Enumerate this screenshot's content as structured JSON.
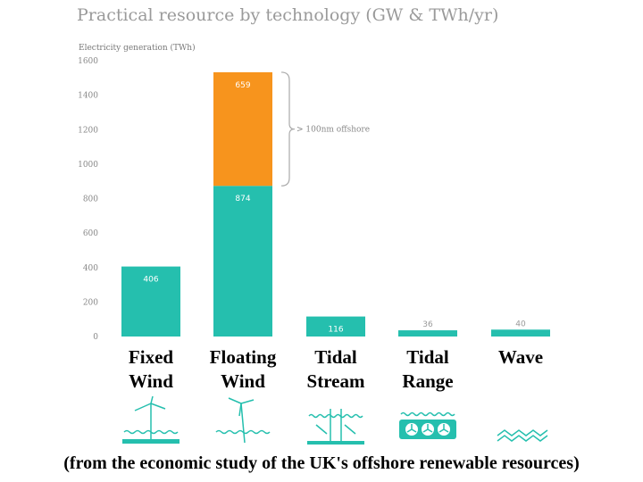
{
  "chart_data": {
    "type": "bar",
    "stacked": true,
    "title": "Practical resource by technology (GW & TWh/yr)",
    "ylabel": "Electricity generation (TWh)",
    "ylim": [
      0,
      1600
    ],
    "yticks": [
      "0",
      "200",
      "400",
      "600",
      "800",
      "1000",
      "1200",
      "1400",
      "1600"
    ],
    "categories": [
      [
        "Fixed",
        "Wind"
      ],
      [
        "Floating",
        "Wind"
      ],
      [
        "Tidal",
        "Stream"
      ],
      [
        "Tidal",
        "Range"
      ],
      [
        "Wave"
      ]
    ],
    "series": [
      {
        "values": [
          406,
          874,
          116,
          36,
          40
        ],
        "labels": [
          "406",
          "874",
          "116",
          "36",
          "40"
        ],
        "color": "#25bfae"
      },
      {
        "values": [
          0,
          659,
          0,
          0,
          0
        ],
        "labels": [
          "",
          "659",
          "",
          "",
          ""
        ],
        "color": "#f7941d"
      }
    ],
    "annotation": {
      "text": "> 100nm offshore",
      "category_index": 1
    },
    "grid": false,
    "legend": "none"
  },
  "icons": [
    "fixed-wind-turbine-icon",
    "floating-wind-turbine-icon",
    "tidal-stream-turbine-icon",
    "tidal-range-barrage-icon",
    "wave-icon"
  ],
  "icon_color": "#25bfae",
  "footer": "(from the economic study of the UK's offshore renewable resources)"
}
